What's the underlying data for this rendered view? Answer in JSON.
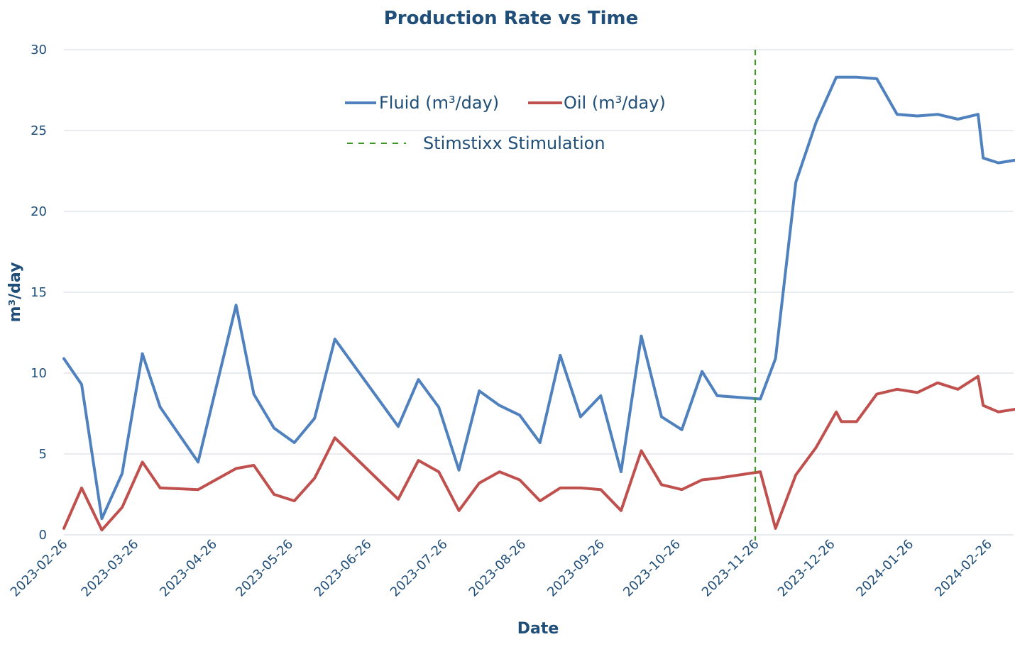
{
  "chart_data": {
    "type": "line",
    "title": "Production Rate vs Time",
    "xlabel": "Date",
    "ylabel": "m³/day",
    "ylim": [
      0,
      30
    ],
    "yticks": [
      0,
      5,
      10,
      15,
      20,
      25,
      30
    ],
    "xlim": [
      "2023-02-26",
      "2024-03-07"
    ],
    "xticks": [
      "2023-02-26",
      "2023-03-26",
      "2023-04-26",
      "2023-05-26",
      "2023-06-26",
      "2023-07-26",
      "2023-08-26",
      "2023-09-26",
      "2023-10-26",
      "2023-11-26",
      "2023-12-26",
      "2024-01-26",
      "2024-02-26"
    ],
    "grid": "horizontal",
    "legend_position": "top-center",
    "stimulation": {
      "name": "Stimstixx Stimulation",
      "date": "2023-11-26",
      "color": "#3a9a1f"
    },
    "series": [
      {
        "name": "Fluid (m³/day)",
        "color": "#4e81bd",
        "points": [
          [
            "2023-02-26",
            10.9
          ],
          [
            "2023-03-05",
            9.3
          ],
          [
            "2023-03-13",
            1.0
          ],
          [
            "2023-03-21",
            3.8
          ],
          [
            "2023-03-29",
            11.2
          ],
          [
            "2023-04-05",
            7.9
          ],
          [
            "2023-04-20",
            4.5
          ],
          [
            "2023-05-05",
            14.2
          ],
          [
            "2023-05-12",
            8.7
          ],
          [
            "2023-05-20",
            6.6
          ],
          [
            "2023-05-28",
            5.7
          ],
          [
            "2023-06-05",
            7.2
          ],
          [
            "2023-06-13",
            12.1
          ],
          [
            "2023-07-08",
            6.7
          ],
          [
            "2023-07-16",
            9.6
          ],
          [
            "2023-07-24",
            7.9
          ],
          [
            "2023-08-01",
            4.0
          ],
          [
            "2023-08-09",
            8.9
          ],
          [
            "2023-08-17",
            8.0
          ],
          [
            "2023-08-25",
            7.4
          ],
          [
            "2023-09-02",
            5.7
          ],
          [
            "2023-09-10",
            11.1
          ],
          [
            "2023-09-18",
            7.3
          ],
          [
            "2023-09-26",
            8.6
          ],
          [
            "2023-10-04",
            3.9
          ],
          [
            "2023-10-12",
            12.3
          ],
          [
            "2023-10-20",
            7.3
          ],
          [
            "2023-10-28",
            6.5
          ],
          [
            "2023-11-05",
            10.1
          ],
          [
            "2023-11-11",
            8.6
          ],
          [
            "2023-11-28",
            8.4
          ],
          [
            "2023-12-04",
            10.9
          ],
          [
            "2023-12-12",
            21.8
          ],
          [
            "2023-12-20",
            25.5
          ],
          [
            "2023-12-28",
            28.3
          ],
          [
            "2024-01-05",
            28.3
          ],
          [
            "2024-01-13",
            28.2
          ],
          [
            "2024-01-21",
            26.0
          ],
          [
            "2024-01-29",
            25.9
          ],
          [
            "2024-02-06",
            26.0
          ],
          [
            "2024-02-14",
            25.7
          ],
          [
            "2024-02-22",
            26.0
          ],
          [
            "2024-02-24",
            23.3
          ],
          [
            "2024-03-01",
            23.0
          ],
          [
            "2024-03-09",
            23.2
          ]
        ]
      },
      {
        "name": "Oil (m³/day)",
        "color": "#c0504d",
        "points": [
          [
            "2023-02-26",
            0.4
          ],
          [
            "2023-03-05",
            2.9
          ],
          [
            "2023-03-13",
            0.3
          ],
          [
            "2023-03-21",
            1.7
          ],
          [
            "2023-03-29",
            4.5
          ],
          [
            "2023-04-05",
            2.9
          ],
          [
            "2023-04-20",
            2.8
          ],
          [
            "2023-05-05",
            4.1
          ],
          [
            "2023-05-12",
            4.3
          ],
          [
            "2023-05-20",
            2.5
          ],
          [
            "2023-05-28",
            2.1
          ],
          [
            "2023-06-05",
            3.5
          ],
          [
            "2023-06-13",
            6.0
          ],
          [
            "2023-07-08",
            2.2
          ],
          [
            "2023-07-16",
            4.6
          ],
          [
            "2023-07-24",
            3.9
          ],
          [
            "2023-08-01",
            1.5
          ],
          [
            "2023-08-09",
            3.2
          ],
          [
            "2023-08-17",
            3.9
          ],
          [
            "2023-08-25",
            3.4
          ],
          [
            "2023-09-02",
            2.1
          ],
          [
            "2023-09-10",
            2.9
          ],
          [
            "2023-09-18",
            2.9
          ],
          [
            "2023-09-26",
            2.8
          ],
          [
            "2023-10-04",
            1.5
          ],
          [
            "2023-10-12",
            5.2
          ],
          [
            "2023-10-20",
            3.1
          ],
          [
            "2023-10-28",
            2.8
          ],
          [
            "2023-11-05",
            3.4
          ],
          [
            "2023-11-11",
            3.5
          ],
          [
            "2023-11-28",
            3.9
          ],
          [
            "2023-12-04",
            0.4
          ],
          [
            "2023-12-12",
            3.7
          ],
          [
            "2023-12-20",
            5.4
          ],
          [
            "2023-12-28",
            7.6
          ],
          [
            "2023-12-30",
            7.0
          ],
          [
            "2024-01-05",
            7.0
          ],
          [
            "2024-01-13",
            8.7
          ],
          [
            "2024-01-21",
            9.0
          ],
          [
            "2024-01-29",
            8.8
          ],
          [
            "2024-02-06",
            9.4
          ],
          [
            "2024-02-14",
            9.0
          ],
          [
            "2024-02-22",
            9.8
          ],
          [
            "2024-02-24",
            8.0
          ],
          [
            "2024-03-01",
            7.6
          ],
          [
            "2024-03-09",
            7.8
          ]
        ]
      }
    ]
  }
}
